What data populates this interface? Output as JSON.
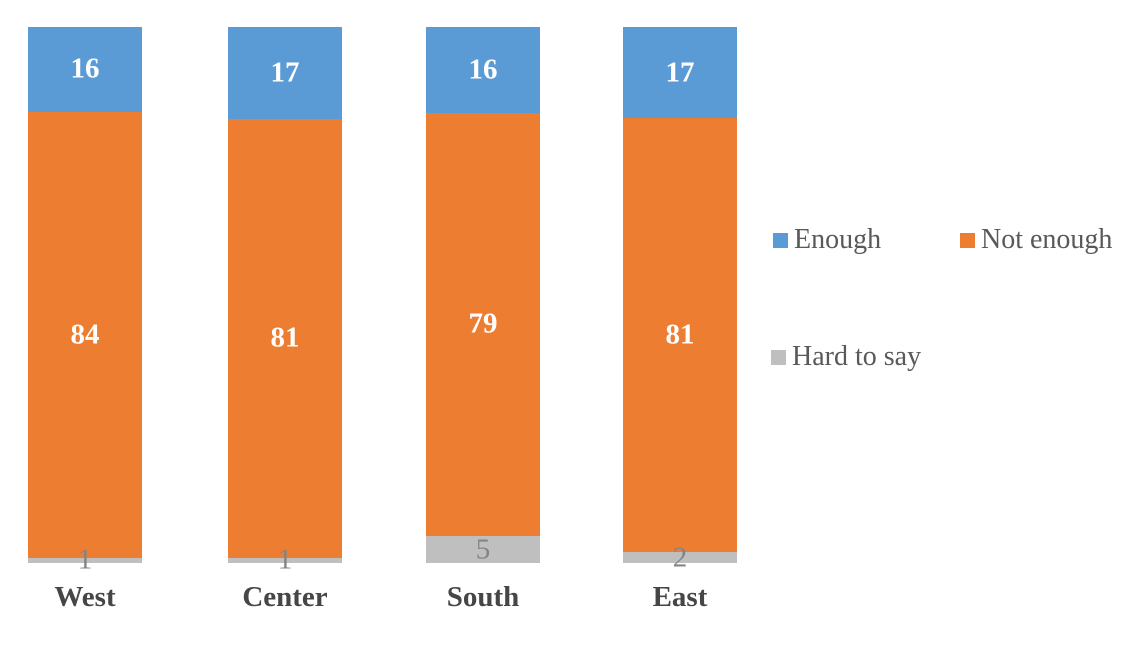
{
  "chart_data": {
    "type": "bar",
    "subtype": "stacked-100-column",
    "title": "",
    "xlabel": "",
    "ylabel": "",
    "axes_visible": false,
    "grid": false,
    "data_labels": true,
    "categories": [
      "West",
      "Center",
      "South",
      "East"
    ],
    "series": [
      {
        "name": "Enough",
        "color": "#5B9BD5",
        "label_color": "#FFFFFF",
        "label_bold": true,
        "values": [
          16,
          17,
          16,
          17
        ]
      },
      {
        "name": "Not enough",
        "color": "#ED7D31",
        "label_color": "#FFFFFF",
        "label_bold": true,
        "values": [
          84,
          81,
          79,
          81
        ]
      },
      {
        "name": "Hard to say",
        "color": "#BFBFBF",
        "label_color": "#848484",
        "label_bold": false,
        "values": [
          1,
          1,
          5,
          2
        ]
      }
    ],
    "legend": {
      "position": "right",
      "text_color": "#595959",
      "entries": [
        "Enough",
        "Not enough",
        "Hard to say"
      ]
    }
  }
}
